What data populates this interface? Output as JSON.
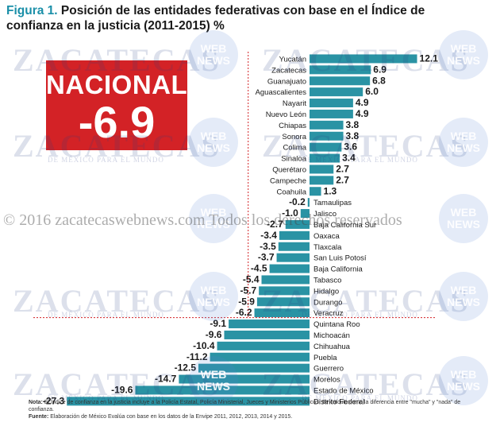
{
  "title": {
    "figure": "Figura 1.",
    "text": "Posición de las entidades federativas con base en el Índice de confianza en la justicia (2011-2015) %"
  },
  "nacional": {
    "label": "NACIONAL",
    "value": "-6.9"
  },
  "watermark": {
    "main": "ZACATECAS",
    "sub": "DE MÉXICO PARA EL MUNDO",
    "badge_line1": "WEB",
    "badge_line2": "NEWS",
    "copyright": "© 2016 zacatecaswebnews.com Todos los derechos reservados"
  },
  "notes": {
    "nota_label": "Nota:",
    "nota_text": "El Índice de confianza en la justicia incluye a la Policía Estatal, Policía Ministerial, Jueces y Ministerios Públicos. Se calcula como la diferencia entre \"mucha\" y \"nada\" de confianza.",
    "fuente_label": "Fuente:",
    "fuente_text": "Elaboración de México Evalúa con base en los datos de la Envipe 2011, 2012, 2013, 2014 y 2015."
  },
  "colors": {
    "bar": "#2a93a4",
    "title_accent": "#1a8fa8",
    "nacional_box": "#d32226",
    "reference_line": "#d32226"
  },
  "chart_data": {
    "type": "bar",
    "orientation": "horizontal",
    "reference_value": -6.9,
    "categories": [
      "Yucatán",
      "Zacatecas",
      "Guanajuato",
      "Aguascalientes",
      "Nayarit",
      "Nuevo León",
      "Chiapas",
      "Sonora",
      "Colima",
      "Sinaloa",
      "Querétaro",
      "Campeche",
      "Coahuila",
      "Tamaulipas",
      "Jalisco",
      "Baja California Sur",
      "Oaxaca",
      "Tlaxcala",
      "San Luis Potosí",
      "Baja California",
      "Tabasco",
      "Hidalgo",
      "Durango",
      "Veracruz",
      "Quintana Roo",
      "Michoacán",
      "Chihuahua",
      "Puebla",
      "Guerrero",
      "Morelos",
      "Estado de México",
      "Distrito Federal"
    ],
    "values": [
      12.1,
      6.9,
      6.8,
      6.0,
      4.9,
      4.9,
      3.8,
      3.8,
      3.6,
      3.4,
      2.7,
      2.7,
      1.3,
      -0.2,
      -1.0,
      -2.7,
      -3.4,
      -3.5,
      -3.7,
      -4.5,
      -5.4,
      -5.7,
      -5.9,
      -6.2,
      -9.1,
      -9.6,
      -10.4,
      -11.2,
      -12.5,
      -14.7,
      -19.6,
      -27.3
    ],
    "value_labels": [
      "12.1",
      "6.9",
      "6.8",
      "6.0",
      "4.9",
      "4.9",
      "3.8",
      "3.8",
      "3.6",
      "3.4",
      "2.7",
      "2.7",
      "1.3",
      "-0.2",
      "-1.0",
      "-2.7",
      "-3.4",
      "-3.5",
      "-3.7",
      "-4.5",
      "-5.4",
      "-5.7",
      "-5.9",
      "-6.2",
      "-9.1",
      "-9.6",
      "-10.4",
      "-11.2",
      "-12.5",
      "-14.7",
      "-19.6",
      "-27.3"
    ]
  }
}
